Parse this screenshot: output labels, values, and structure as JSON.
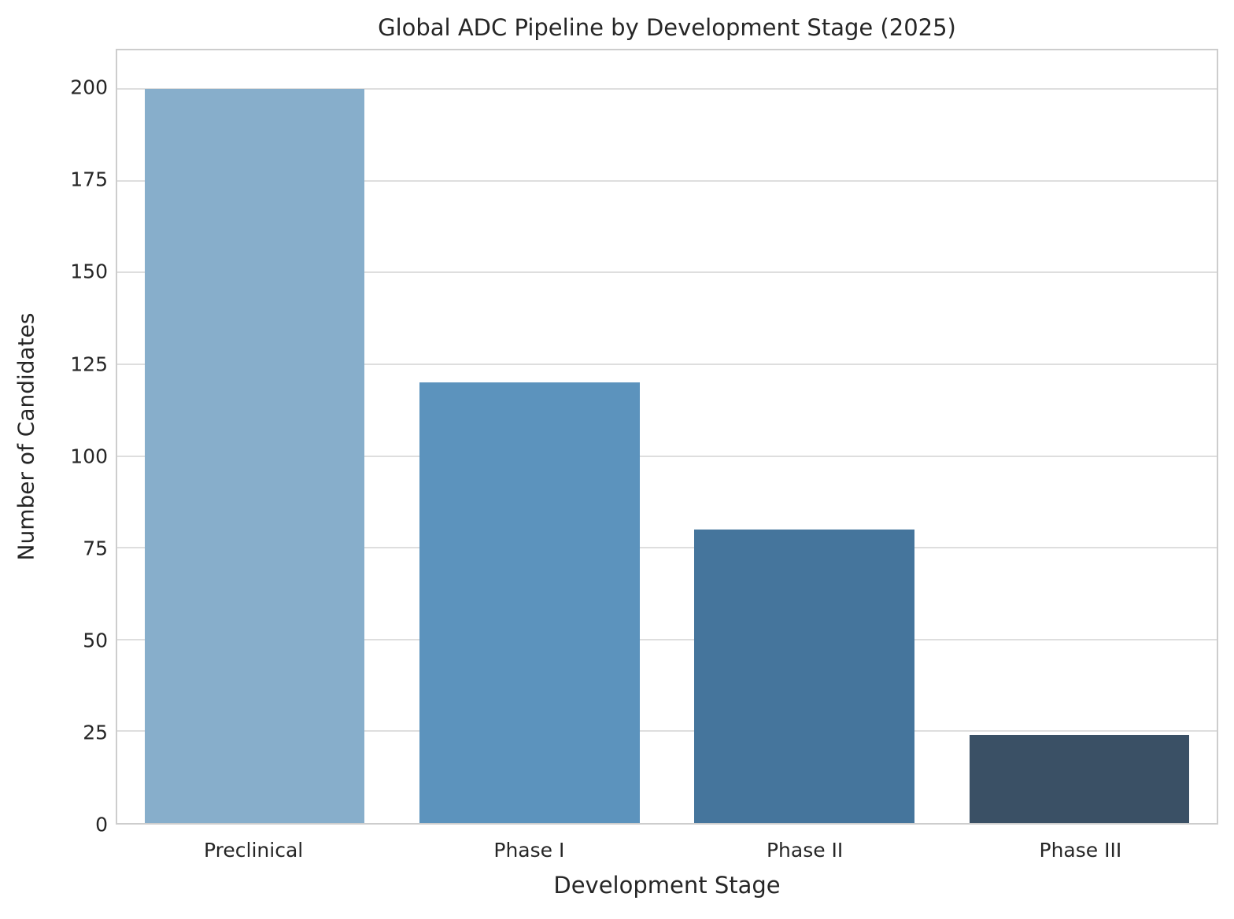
{
  "chart_data": {
    "type": "bar",
    "title": "Global ADC Pipeline by Development Stage (2025)",
    "xlabel": "Development Stage",
    "ylabel": "Number of Candidates",
    "categories": [
      "Preclinical",
      "Phase I",
      "Phase II",
      "Phase III"
    ],
    "values": [
      200,
      120,
      80,
      24
    ],
    "bar_colors": [
      "#87aecb",
      "#5c93bd",
      "#45759c",
      "#3a5065"
    ],
    "yticks": [
      0,
      25,
      50,
      75,
      100,
      125,
      150,
      175,
      200
    ],
    "ylim": [
      0,
      210.5
    ],
    "bar_width_fraction": 0.8,
    "grid": true,
    "legend": false
  },
  "colors": {
    "background": "#ffffff",
    "text": "#262626",
    "grid": "#dedede",
    "spine": "#cdcdcd"
  }
}
